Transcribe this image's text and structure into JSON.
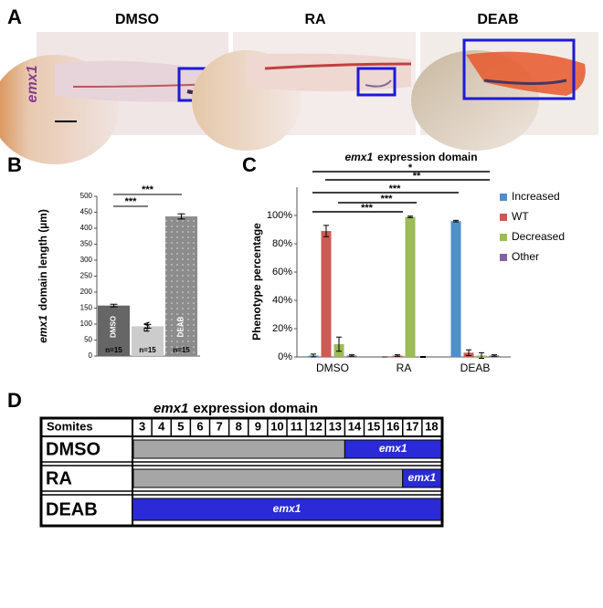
{
  "panel_labels": [
    "A",
    "B",
    "C",
    "D"
  ],
  "panel_a": {
    "conditions": [
      "DMSO",
      "RA",
      "DEAB"
    ],
    "gene_label": "emx1"
  },
  "chart_data": [
    {
      "type": "bar",
      "ylabel_gene": "emx1",
      "ylabel": "domain length (µm)",
      "categories": [
        "DMSO",
        "RA",
        "DEAB"
      ],
      "n_labels": [
        "n=15",
        "n=15",
        "n=15"
      ],
      "values": [
        158,
        93,
        437
      ],
      "errors": [
        4,
        6,
        8
      ],
      "colors": [
        "#666666",
        "#cccccc",
        "#8c8c8c"
      ],
      "ylim": [
        0,
        500
      ],
      "yticks": [
        0,
        50,
        100,
        150,
        200,
        250,
        300,
        350,
        400,
        450,
        500
      ],
      "significance_labels": [
        "***",
        "***"
      ]
    },
    {
      "type": "grouped_bar",
      "title_gene": "emx1",
      "title": "expression domain",
      "ylabel": "Phenotype percentage",
      "categories": [
        "DMSO",
        "RA",
        "DEAB"
      ],
      "series": [
        {
          "name": "Increased",
          "color": "#4f8fca",
          "values": [
            1,
            0,
            96
          ],
          "errors": [
            1,
            0,
            0.5
          ]
        },
        {
          "name": "WT",
          "color": "#cc5b55",
          "values": [
            89,
            1,
            3
          ],
          "errors": [
            4,
            0.5,
            2
          ]
        },
        {
          "name": "Decreased",
          "color": "#9bbb59",
          "values": [
            9,
            99,
            1
          ],
          "errors": [
            5,
            0.5,
            2
          ]
        },
        {
          "name": "Other",
          "color": "#8064a2",
          "values": [
            1,
            0,
            1
          ],
          "errors": [
            0.5,
            0.3,
            0.5
          ]
        }
      ],
      "ylim": [
        0,
        100
      ],
      "yticks": [
        {
          "value": 0,
          "label": "0%"
        },
        {
          "value": 20,
          "label": "20%"
        },
        {
          "value": 40,
          "label": "40%"
        },
        {
          "value": 60,
          "label": "60%"
        },
        {
          "value": 80,
          "label": "80%"
        },
        {
          "value": 100,
          "label": "100%"
        }
      ],
      "significance_labels": [
        "*",
        "**",
        "***",
        "***",
        "***"
      ],
      "legend": "right"
    }
  ],
  "panel_d": {
    "title_gene": "emx1",
    "title": "expression domain",
    "header": "Somites",
    "somites": [
      3,
      4,
      5,
      6,
      7,
      8,
      9,
      10,
      11,
      12,
      13,
      14,
      15,
      16,
      17,
      18
    ],
    "rows": [
      {
        "label": "DMSO",
        "bar_label": "emx1",
        "emx1_from": 14
      },
      {
        "label": "RA",
        "bar_label": "emx1",
        "emx1_from": 17
      },
      {
        "label": "DEAB",
        "bar_label": "emx1",
        "emx1_from": 3
      }
    ]
  }
}
